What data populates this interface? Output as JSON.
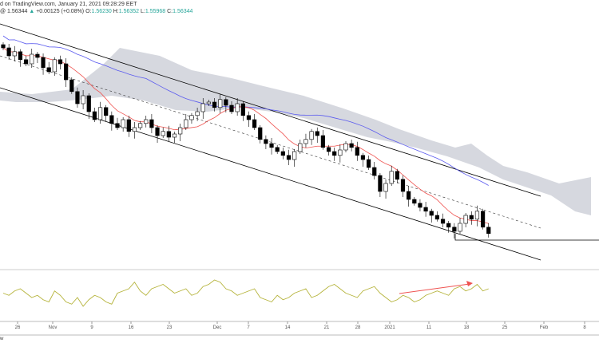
{
  "header": {
    "line1": "d on TradingView.com, January 21, 2021 09:28:29 EET",
    "price": "@ 1.56344",
    "change_icon": "triangle-up-icon",
    "change": "+0.00125 (+0.08%)",
    "o_label": "O:",
    "o": "1.56230",
    "h_label": "H:",
    "h": "1.56352",
    "l_label": "L:",
    "l": "1.55968",
    "c_label": "C:",
    "c": "1.56344"
  },
  "footer": "w",
  "colors": {
    "up": "#ffffff",
    "down": "#000000",
    "tenkan": "#ef5350",
    "kijun": "#5b5bef",
    "cloud": "#d1d4dc",
    "osc": "#b5b33a",
    "arrow": "#ef5350"
  },
  "chart_data": {
    "type": "candlestick",
    "x_ticks": [
      "26",
      "Nov",
      "9",
      "16",
      "23",
      "Dec",
      "7",
      "14",
      "21",
      "28",
      "2021",
      "11",
      "18",
      "25",
      "Feb",
      "8"
    ],
    "closes": [
      1.6216,
      1.6191,
      1.6204,
      1.6179,
      1.6166,
      1.6196,
      1.6186,
      1.6154,
      1.6141,
      1.6179,
      1.6166,
      1.6116,
      1.6079,
      1.6041,
      1.6066,
      1.6016,
      1.5991,
      1.6029,
      1.6004,
      1.5979,
      1.5966,
      1.5991,
      1.5954,
      1.5966,
      1.5979,
      1.5991,
      1.5966,
      1.5941,
      1.5954,
      1.5936,
      1.5946,
      1.5966,
      1.5991,
      1.6004,
      1.6016,
      1.6041,
      1.6046,
      1.6029,
      1.6054,
      1.6036,
      1.6016,
      1.6041,
      1.6004,
      1.5991,
      1.5966,
      1.5929,
      1.5916,
      1.5904,
      1.5891,
      1.5879,
      1.5866,
      1.5891,
      1.5916,
      1.5929,
      1.5954,
      1.5941,
      1.5904,
      1.5891,
      1.5879,
      1.5896,
      1.5916,
      1.5904,
      1.5879,
      1.5866,
      1.5841,
      1.5816,
      1.5766,
      1.5791,
      1.5829,
      1.5804,
      1.5766,
      1.5741,
      1.5729,
      1.5716,
      1.5704,
      1.5691,
      1.5679,
      1.5666,
      1.5654,
      1.5641,
      1.5666,
      1.5691,
      1.5679,
      1.5704,
      1.5654,
      1.5634
    ],
    "oscillator": [
      50,
      45,
      55,
      60,
      50,
      40,
      45,
      35,
      30,
      55,
      45,
      30,
      25,
      40,
      20,
      35,
      45,
      40,
      30,
      25,
      50,
      55,
      60,
      75,
      55,
      45,
      60,
      65,
      70,
      60,
      50,
      55,
      60,
      45,
      50,
      65,
      70,
      80,
      75,
      60,
      55,
      45,
      50,
      55,
      60,
      40,
      35,
      30,
      45,
      35,
      40,
      50,
      55,
      60,
      40,
      45,
      55,
      65,
      70,
      60,
      50,
      45,
      40,
      55,
      60,
      65,
      50,
      40,
      30,
      35,
      45,
      40,
      30,
      35,
      45,
      50,
      55,
      50,
      45,
      60,
      65,
      55,
      60,
      70,
      55,
      60
    ]
  }
}
